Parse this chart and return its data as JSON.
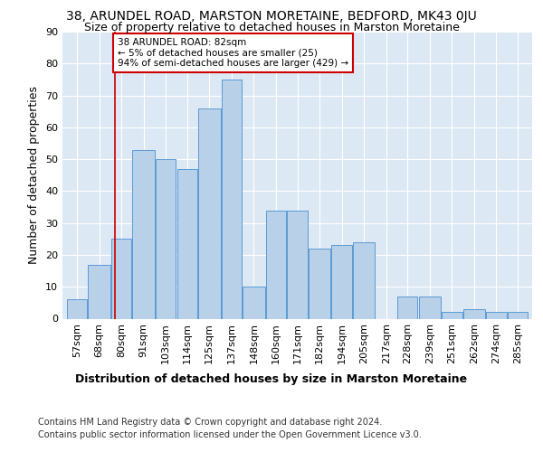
{
  "title1": "38, ARUNDEL ROAD, MARSTON MORETAINE, BEDFORD, MK43 0JU",
  "title2": "Size of property relative to detached houses in Marston Moretaine",
  "xlabel": "Distribution of detached houses by size in Marston Moretaine",
  "ylabel": "Number of detached properties",
  "footnote1": "Contains HM Land Registry data © Crown copyright and database right 2024.",
  "footnote2": "Contains public sector information licensed under the Open Government Licence v3.0.",
  "annotation_line1": "38 ARUNDEL ROAD: 82sqm",
  "annotation_line2": "← 5% of detached houses are smaller (25)",
  "annotation_line3": "94% of semi-detached houses are larger (429) →",
  "property_sqm": 82,
  "bar_labels": [
    "57sqm",
    "68sqm",
    "80sqm",
    "91sqm",
    "103sqm",
    "114sqm",
    "125sqm",
    "137sqm",
    "148sqm",
    "160sqm",
    "171sqm",
    "182sqm",
    "194sqm",
    "205sqm",
    "217sqm",
    "228sqm",
    "239sqm",
    "251sqm",
    "262sqm",
    "274sqm",
    "285sqm"
  ],
  "bar_values": [
    6,
    17,
    25,
    53,
    50,
    47,
    66,
    75,
    10,
    34,
    34,
    22,
    23,
    24,
    0,
    7,
    7,
    2,
    3,
    2,
    2
  ],
  "bar_left_edges": [
    57,
    68,
    80,
    91,
    103,
    114,
    125,
    137,
    148,
    160,
    171,
    182,
    194,
    205,
    217,
    228,
    239,
    251,
    262,
    274,
    285
  ],
  "bar_widths": [
    11,
    12,
    11,
    12,
    11,
    11,
    12,
    11,
    12,
    11,
    11,
    12,
    11,
    12,
    11,
    11,
    12,
    11,
    12,
    11,
    11
  ],
  "bar_color": "#b8d0e8",
  "bar_edge_color": "#5b9bd5",
  "property_line_color": "#cc0000",
  "annotation_box_color": "#cc0000",
  "annotation_text_color": "#000000",
  "background_color": "#ffffff",
  "plot_bg_color": "#dde8f5",
  "grid_color": "#ffffff",
  "ylim": [
    0,
    90
  ],
  "yticks": [
    0,
    10,
    20,
    30,
    40,
    50,
    60,
    70,
    80,
    90
  ],
  "title1_fontsize": 10,
  "title2_fontsize": 9,
  "axis_label_fontsize": 9,
  "tick_fontsize": 8,
  "footnote_fontsize": 7.0
}
